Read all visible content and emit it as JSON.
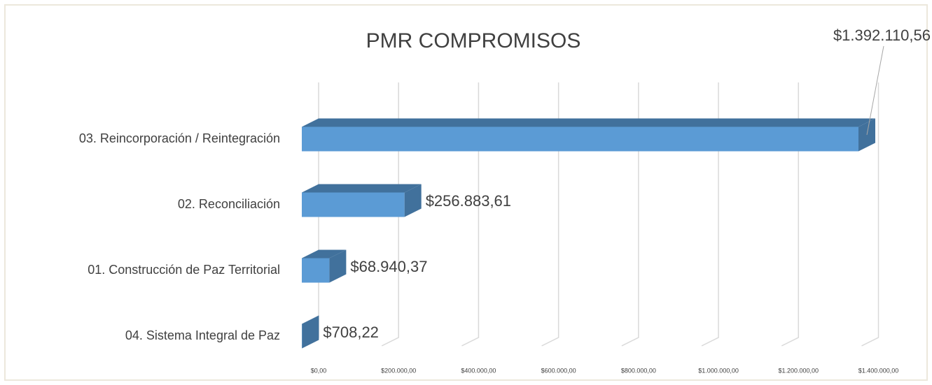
{
  "chart_data": {
    "type": "bar3d-horizontal",
    "title": "PMR COMPROMISOS",
    "categories": [
      "03. Reincorporación / Reintegración",
      "02. Reconciliación",
      "01. Construcción de Paz Territorial",
      "04. Sistema Integral de Paz"
    ],
    "values": [
      1392110.56,
      256883.61,
      68940.37,
      708.22
    ],
    "value_labels": [
      "$1.392.110,56",
      "$256.883,61",
      "$68.940,37",
      "$708,22"
    ],
    "color": "#5b9bd5",
    "edge_color": "#41719c",
    "xlim": [
      0,
      1400000
    ],
    "xticks": [
      {
        "value": 0,
        "label": "$0,00"
      },
      {
        "value": 200000,
        "label": "$200.000,00"
      },
      {
        "value": 400000,
        "label": "$400.000,00"
      },
      {
        "value": 600000,
        "label": "$600.000,00"
      },
      {
        "value": 800000,
        "label": "$800.000,00"
      },
      {
        "value": 1000000,
        "label": "$1.000.000,00"
      },
      {
        "value": 1200000,
        "label": "$1.200.000,00"
      },
      {
        "value": 1400000,
        "label": "$1.400.000,00"
      }
    ],
    "grid": true
  }
}
